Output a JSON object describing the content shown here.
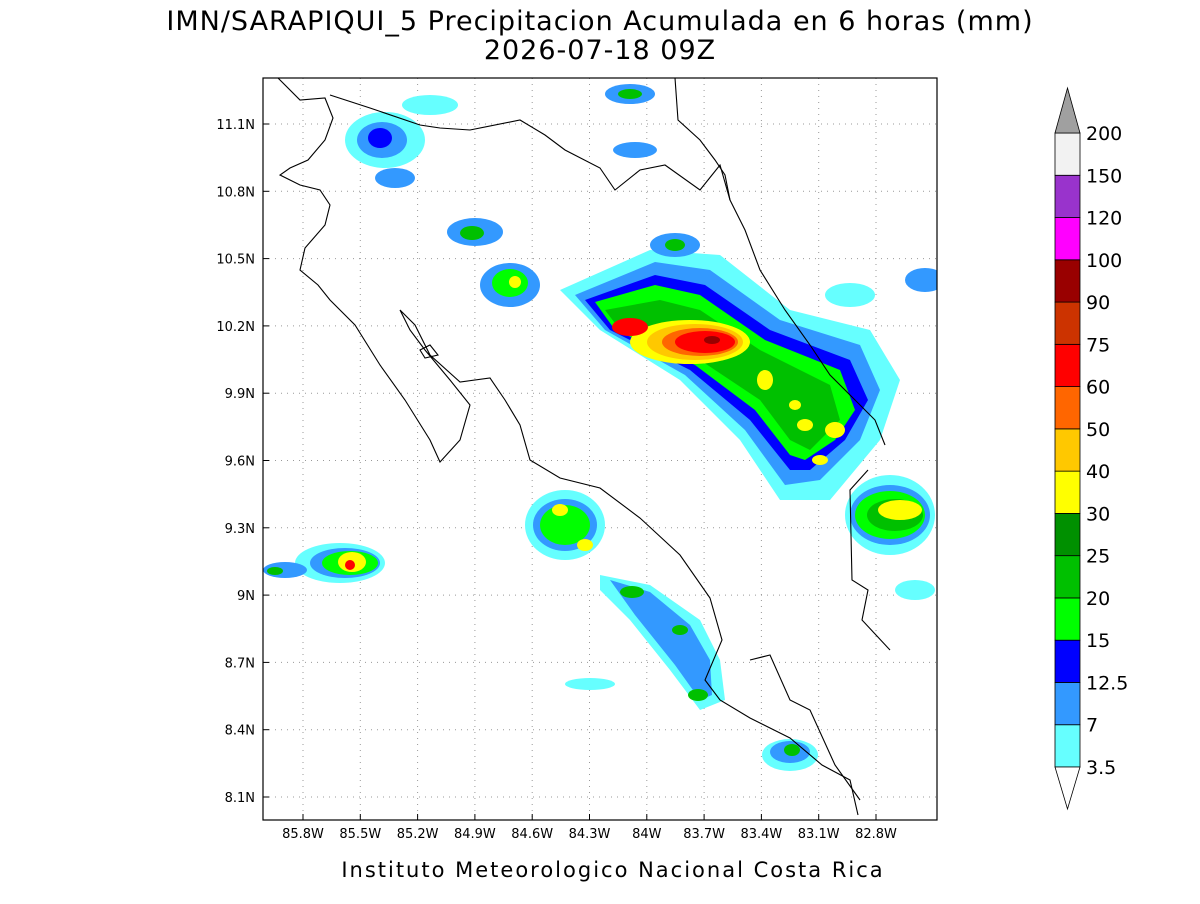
{
  "title": "IMN/SARAPIQUI_5 Precipitacion Acumulada en 6 horas (mm)",
  "subtitle": "2026-07-18 09Z",
  "map": {
    "lon_labels": [
      "85.8W",
      "85.5W",
      "85.2W",
      "84.9W",
      "84.6W",
      "84.3W",
      "84W",
      "83.7W",
      "83.4W",
      "83.1W",
      "82.8W"
    ],
    "lat_labels": [
      "11.1N",
      "10.8N",
      "10.5N",
      "10.2N",
      "9.9N",
      "9.6N",
      "9.3N",
      "9N",
      "8.7N",
      "8.4N",
      "8.1N"
    ]
  },
  "colorbar": {
    "labels": [
      3.5,
      7,
      12.5,
      15,
      20,
      25,
      30,
      40,
      50,
      60,
      75,
      90,
      100,
      120,
      150,
      200
    ],
    "under_color": "#ffffff",
    "colors": [
      "#66ffff",
      "#3399ff",
      "#0000ff",
      "#00ff00",
      "#00c000",
      "#009000",
      "#ffff00",
      "#ffc800",
      "#ff6600",
      "#ff0000",
      "#cc3300",
      "#990000",
      "#ff00ff",
      "#9933cc",
      "#f2f2f2"
    ],
    "over_color": "#a0a0a0"
  },
  "footer": "Instituto Meteorologico Nacional Costa Rica"
}
